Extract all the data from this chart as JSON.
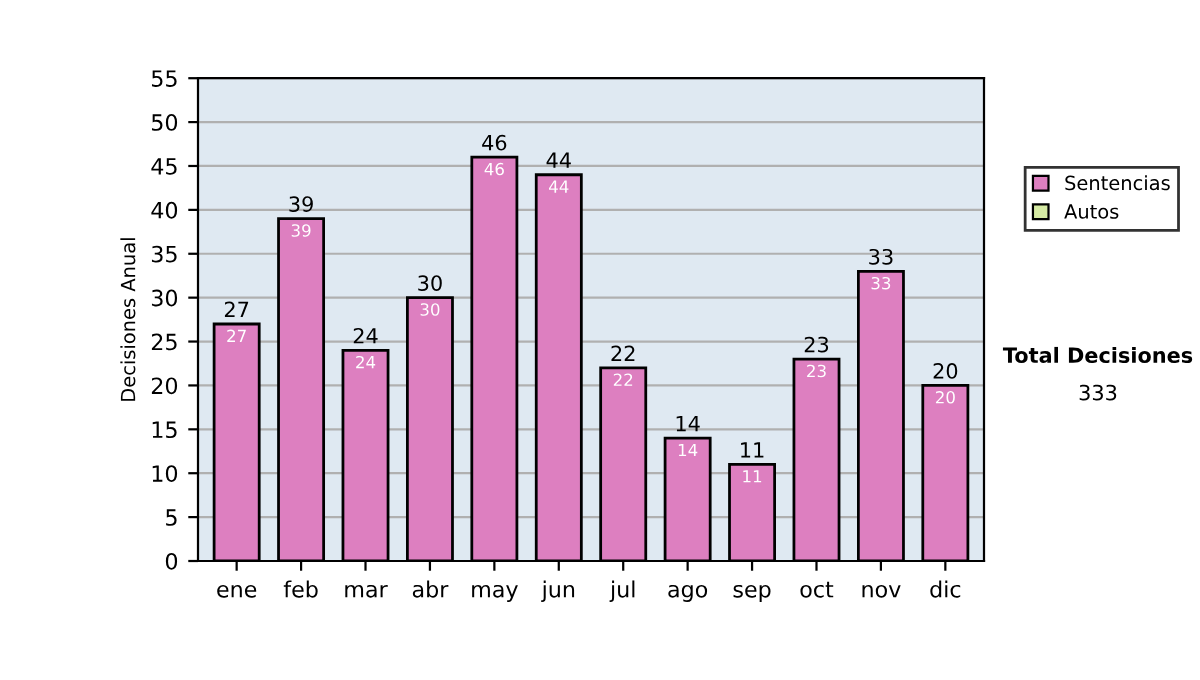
{
  "chart_data": {
    "type": "bar",
    "ylabel": "Decisiones Anual",
    "categories": [
      "ene",
      "feb",
      "mar",
      "abr",
      "may",
      "jun",
      "jul",
      "ago",
      "sep",
      "oct",
      "nov",
      "dic"
    ],
    "series": [
      {
        "name": "Sentencias",
        "color": "#dd7fc0",
        "values": [
          27,
          39,
          24,
          30,
          46,
          44,
          22,
          14,
          11,
          23,
          33,
          20
        ],
        "value_labels": [
          "27",
          "39",
          "24",
          "30",
          "46",
          "44",
          "22",
          "14",
          "11",
          "23",
          "33",
          "20"
        ]
      },
      {
        "name": "Autos",
        "color": "#d6eba4",
        "values": [
          null,
          null,
          null,
          null,
          null,
          null,
          null,
          null,
          null,
          null,
          null,
          null
        ]
      }
    ],
    "stacked": true,
    "totals": [
      "27",
      "39",
      "24",
      "30",
      "46",
      "44",
      "22",
      "14",
      "11",
      "23",
      "33",
      "20"
    ],
    "ylim": [
      0,
      55
    ],
    "yticks": [
      0,
      5,
      10,
      15,
      20,
      25,
      30,
      35,
      40,
      45,
      50,
      55
    ],
    "grid": "y",
    "legend": "right",
    "annotations": [
      "Total Decisiones",
      "333"
    ]
  }
}
